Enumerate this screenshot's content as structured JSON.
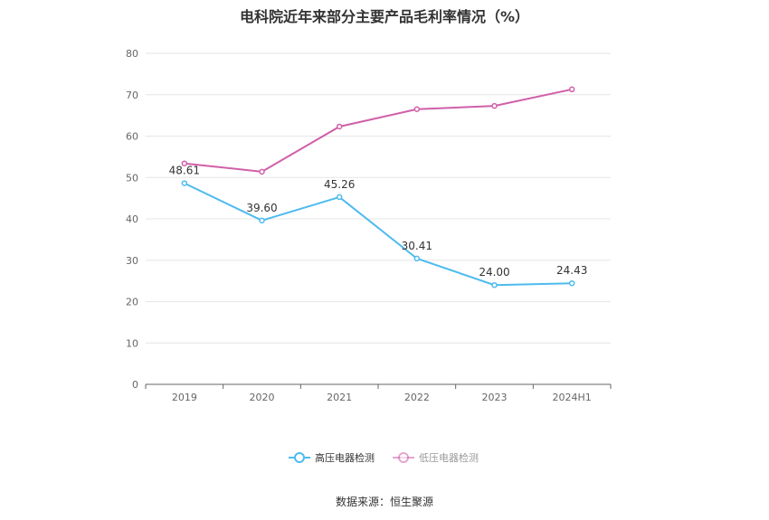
{
  "page": {
    "title": "电科院近年来部分主要产品毛利率情况（%）",
    "source": "数据来源：恒生聚源"
  },
  "chart_data": {
    "type": "line",
    "title": "电科院近年来部分主要产品毛利率情况（%）",
    "categories": [
      "2019",
      "2020",
      "2021",
      "2022",
      "2023",
      "2024H1"
    ],
    "ylim": [
      0,
      80
    ],
    "yticks": [
      0,
      10,
      20,
      30,
      40,
      50,
      60,
      70,
      80
    ],
    "grid": true,
    "legend_position": "bottom-center",
    "series": [
      {
        "name": "高压电器检测",
        "color": "#4dbbef",
        "values": [
          48.61,
          39.6,
          45.26,
          30.41,
          24.0,
          24.43
        ],
        "labels": [
          "48.61",
          "39.60",
          "45.26",
          "30.41",
          "24.00",
          "24.43"
        ]
      },
      {
        "name": "低压电器检测",
        "color": "#d05fa8",
        "values": [
          53.4,
          51.4,
          62.3,
          66.5,
          67.3,
          71.3
        ]
      }
    ]
  }
}
